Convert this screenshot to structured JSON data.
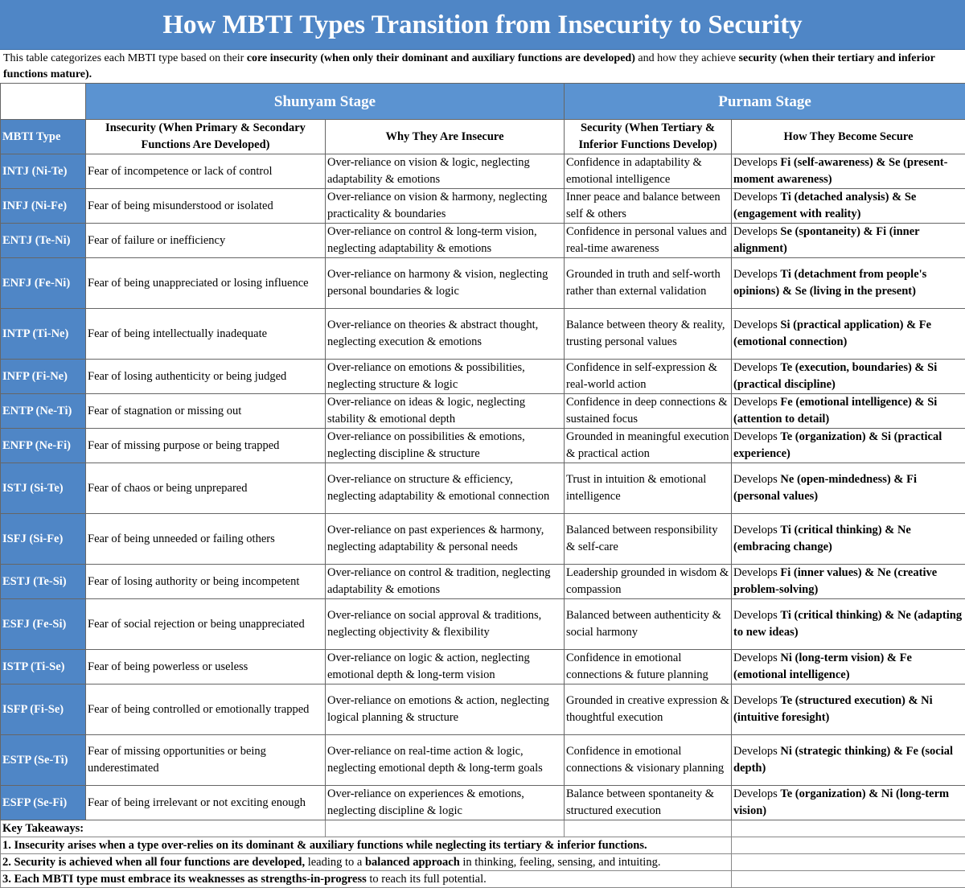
{
  "title": "How MBTI Types Transition from Insecurity to Security",
  "description": [
    {
      "t": "This table categorizes each MBTI type based on their ",
      "b": false
    },
    {
      "t": "core insecurity (when only their dominant and auxiliary functions are developed)",
      "b": true
    },
    {
      "t": " and how they achieve ",
      "b": false
    },
    {
      "t": "security (when their tertiary and inferior functions mature).",
      "b": true
    }
  ],
  "stages": {
    "shunyam": "Shunyam Stage",
    "purnam": "Purnam Stage"
  },
  "headers": {
    "type": "MBTI Type",
    "insecurity": "Insecurity (When Primary & Secondary Functions Are Developed)",
    "why": "Why They Are Insecure",
    "security": "Security (When Tertiary & Inferior Functions Develop)",
    "how": "How They Become Secure"
  },
  "rows": [
    {
      "type": "INTJ (Ni-Te)",
      "insecurity": "Fear of incompetence or lack of control",
      "why": "Over-reliance on vision & logic, neglecting adaptability & emotions",
      "security": "Confidence in adaptability & emotional intelligence",
      "how": [
        {
          "t": "Develops ",
          "b": false
        },
        {
          "t": "Fi (self-awareness) & Se (present-moment awareness)",
          "b": true
        }
      ]
    },
    {
      "type": "INFJ (Ni-Fe)",
      "insecurity": "Fear of being misunderstood or isolated",
      "why": "Over-reliance on vision & harmony, neglecting practicality & boundaries",
      "security": "Inner peace and balance between self & others",
      "how": [
        {
          "t": "Develops ",
          "b": false
        },
        {
          "t": "Ti (detached analysis) & Se (engagement with reality)",
          "b": true
        }
      ]
    },
    {
      "type": "ENTJ (Te-Ni)",
      "insecurity": "Fear of failure or inefficiency",
      "why": "Over-reliance on control & long-term vision, neglecting adaptability & emotions",
      "security": "Confidence in personal values and real-time awareness",
      "how": [
        {
          "t": "Develops ",
          "b": false
        },
        {
          "t": "Se (spontaneity) & Fi (inner alignment)",
          "b": true
        }
      ]
    },
    {
      "type": "ENFJ (Fe-Ni)",
      "insecurity": "Fear of being unappreciated or losing influence",
      "why": "Over-reliance on harmony & vision, neglecting personal boundaries & logic",
      "security": "Grounded in truth and self-worth rather than external validation",
      "how": [
        {
          "t": "Develops ",
          "b": false
        },
        {
          "t": "Ti (detachment from people's opinions) & Se (living in the present)",
          "b": true
        }
      ]
    },
    {
      "type": "INTP (Ti-Ne)",
      "insecurity": "Fear of being intellectually inadequate",
      "why": "Over-reliance on theories & abstract thought, neglecting execution & emotions",
      "security": "Balance between theory & reality, trusting personal values",
      "how": [
        {
          "t": "Develops ",
          "b": false
        },
        {
          "t": "Si (practical application) & Fe (emotional connection)",
          "b": true
        }
      ]
    },
    {
      "type": "INFP (Fi-Ne)",
      "insecurity": "Fear of losing authenticity or being judged",
      "why": "Over-reliance on emotions & possibilities, neglecting structure & logic",
      "security": "Confidence in self-expression & real-world action",
      "how": [
        {
          "t": "Develops ",
          "b": false
        },
        {
          "t": "Te (execution, boundaries) & Si (practical discipline)",
          "b": true
        }
      ]
    },
    {
      "type": "ENTP (Ne-Ti)",
      "insecurity": "Fear of stagnation or missing out",
      "why": "Over-reliance on ideas & logic, neglecting stability & emotional depth",
      "security": "Confidence in deep connections & sustained focus",
      "how": [
        {
          "t": "Develops ",
          "b": false
        },
        {
          "t": "Fe (emotional intelligence) & Si (attention to detail)",
          "b": true
        }
      ]
    },
    {
      "type": "ENFP (Ne-Fi)",
      "insecurity": "Fear of missing purpose or being trapped",
      "why": "Over-reliance on possibilities & emotions, neglecting discipline & structure",
      "security": "Grounded in meaningful execution & practical action",
      "how": [
        {
          "t": "Develops ",
          "b": false
        },
        {
          "t": "Te (organization) & Si (practical experience)",
          "b": true
        }
      ]
    },
    {
      "type": "ISTJ (Si-Te)",
      "insecurity": "Fear of chaos or being unprepared",
      "why": "Over-reliance on structure & efficiency, neglecting adaptability & emotional connection",
      "security": "Trust in intuition & emotional intelligence",
      "how": [
        {
          "t": "Develops ",
          "b": false
        },
        {
          "t": "Ne (open-mindedness) & Fi (personal values)",
          "b": true
        }
      ]
    },
    {
      "type": "ISFJ (Si-Fe)",
      "insecurity": "Fear of being unneeded or failing others",
      "why": "Over-reliance on past experiences & harmony, neglecting adaptability & personal needs",
      "security": "Balanced between responsibility & self-care",
      "how": [
        {
          "t": "Develops ",
          "b": false
        },
        {
          "t": "Ti (critical thinking) & Ne (embracing change)",
          "b": true
        }
      ]
    },
    {
      "type": "ESTJ (Te-Si)",
      "insecurity": "Fear of losing authority or being incompetent",
      "why": "Over-reliance on control & tradition, neglecting adaptability & emotions",
      "security": "Leadership grounded in wisdom & compassion",
      "how": [
        {
          "t": "Develops ",
          "b": false
        },
        {
          "t": "Fi (inner values) & Ne (creative problem-solving)",
          "b": true
        }
      ]
    },
    {
      "type": "ESFJ (Fe-Si)",
      "insecurity": "Fear of social rejection or being unappreciated",
      "why": "Over-reliance on social approval & traditions, neglecting objectivity & flexibility",
      "security": "Balanced between authenticity & social harmony",
      "how": [
        {
          "t": "Develops ",
          "b": false
        },
        {
          "t": "Ti (critical thinking) & Ne (adapting to new ideas)",
          "b": true
        }
      ]
    },
    {
      "type": "ISTP (Ti-Se)",
      "insecurity": "Fear of being powerless or useless",
      "why": "Over-reliance on logic & action, neglecting emotional depth & long-term vision",
      "security": "Confidence in emotional connections & future planning",
      "how": [
        {
          "t": "Develops ",
          "b": false
        },
        {
          "t": "Ni (long-term vision) & Fe (emotional intelligence)",
          "b": true
        }
      ]
    },
    {
      "type": "ISFP (Fi-Se)",
      "insecurity": "Fear of being controlled or emotionally trapped",
      "why": "Over-reliance on emotions & action, neglecting logical planning & structure",
      "security": "Grounded in creative expression & thoughtful execution",
      "how": [
        {
          "t": "Develops ",
          "b": false
        },
        {
          "t": "Te (structured execution) & Ni (intuitive foresight)",
          "b": true
        }
      ]
    },
    {
      "type": "ESTP (Se-Ti)",
      "insecurity": "Fear of missing opportunities or being underestimated",
      "why": "Over-reliance on real-time action & logic, neglecting emotional depth & long-term goals",
      "security": "Confidence in emotional connections & visionary planning",
      "how": [
        {
          "t": "Develops ",
          "b": false
        },
        {
          "t": "Ni (strategic thinking) & Fe (social depth)",
          "b": true
        }
      ]
    },
    {
      "type": "ESFP (Se-Fi)",
      "insecurity": "Fear of being irrelevant or not exciting enough",
      "why": "Over-reliance on experiences & emotions, neglecting discipline & logic",
      "security": "Balance between spontaneity & structured execution",
      "how": [
        {
          "t": "Develops ",
          "b": false
        },
        {
          "t": "Te (organization) & Ni (long-term vision)",
          "b": true
        }
      ]
    }
  ],
  "takeaways": {
    "heading": "Key Takeaways:",
    "items": [
      [
        {
          "t": "1. Insecurity arises when a type ",
          "b": true
        },
        {
          "t": "over-relies on its dominant & auxiliary functions",
          "b": true
        },
        {
          "t": " while neglecting its ",
          "b": true
        },
        {
          "t": "tertiary & inferior functions.",
          "b": true
        }
      ],
      [
        {
          "t": "2. Security is achieved when ",
          "b": true
        },
        {
          "t": "all four functions are developed,",
          "b": true
        },
        {
          "t": " leading to a ",
          "b": false
        },
        {
          "t": "balanced approach",
          "b": true
        },
        {
          "t": " in thinking, feeling, sensing, and intuiting.",
          "b": false
        }
      ],
      [
        {
          "t": "3. Each MBTI type must ",
          "b": true
        },
        {
          "t": "embrace its weaknesses as strengths-in-progress",
          "b": true
        },
        {
          "t": " to reach its full potential.",
          "b": false
        }
      ]
    ]
  }
}
